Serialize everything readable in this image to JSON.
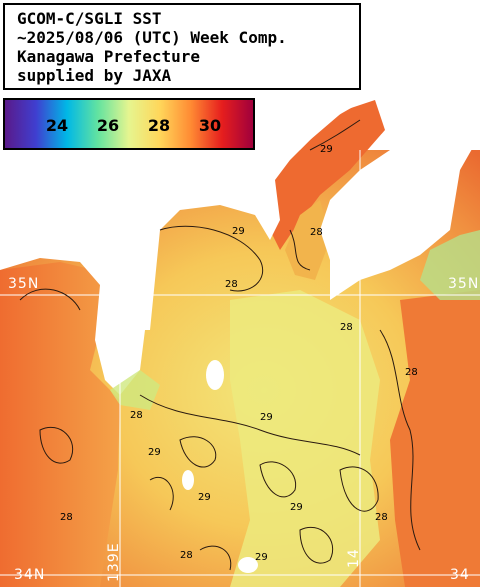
{
  "title": {
    "line1": "GCOM-C/SGLI SST",
    "line2": "~2025/08/06 (UTC) Week Comp.",
    "line3": "Kanagawa Prefecture",
    "line4": "supplied by JAXA"
  },
  "colorbar": {
    "labels": [
      "24",
      "26",
      "28",
      "30"
    ],
    "colors": [
      "#5a1a8a",
      "#3f3fd0",
      "#00b8e6",
      "#63e3a0",
      "#e6f58f",
      "#ffd65a",
      "#ff8a33",
      "#e61e1e",
      "#a0003c"
    ]
  },
  "grid_labels": {
    "lat_35_left": "35N",
    "lat_35_right": "35N",
    "lat_34_left": "34N",
    "lat_34_right": "34",
    "lon_139": "139E",
    "lon_140": "14"
  },
  "contour_labels": [
    "28",
    "29",
    "29",
    "28",
    "29",
    "28",
    "28",
    "29",
    "29",
    "28",
    "28",
    "29",
    "28",
    "29",
    "28"
  ],
  "colors": {
    "land": "#ffffff",
    "sea_warm": "#f07a3c",
    "sea_mid": "#f6c45a",
    "sea_cool": "#e8ec86",
    "contour": "#2a1a10",
    "grid": "#ffffff"
  }
}
